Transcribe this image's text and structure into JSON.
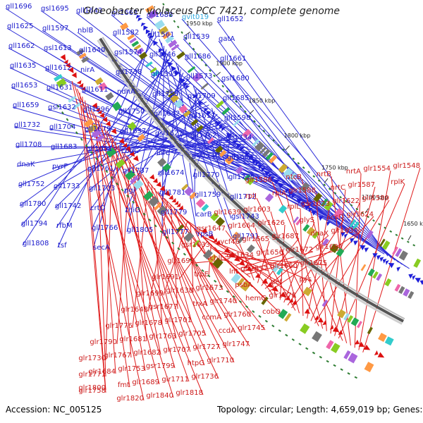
{
  "title": "Gloeobacter violaceus PCC 7421, complete genome",
  "footer": {
    "accession": "Accession: NC_005125",
    "topology": "Topology: circular; Length: 4,659,019 bp; Genes: 4,482"
  },
  "colors": {
    "forward_strand": "#1f1fd9",
    "reverse_strand": "#dd1111",
    "backbone": "#888888",
    "blue_leader": "#2a2ad8",
    "red_leader": "#e01c1c"
  },
  "kbp_ticks": [
    "1650 kbp",
    "1700 kbp",
    "1750 kbp",
    "1800 kbp",
    "1850 kbp",
    "1900 kbp",
    "1950 kbp"
  ],
  "blue_labels": [
    {
      "t": "gll1696"
    },
    {
      "t": "gsl1695"
    },
    {
      "t": "gll1643"
    },
    {
      "t": "gll1663"
    },
    {
      "t": "gll1688"
    },
    {
      "t": "gvit019",
      "cyan": true
    },
    {
      "t": "gll1652"
    },
    {
      "t": "gll1625"
    },
    {
      "t": "gll1597"
    },
    {
      "t": "nblB"
    },
    {
      "t": "gll1582"
    },
    {
      "t": "gll1561"
    },
    {
      "t": "gll1539"
    },
    {
      "t": "gatA"
    },
    {
      "t": "gll1662"
    },
    {
      "t": "gsl1613"
    },
    {
      "t": "gll1640"
    },
    {
      "t": "gsl1574"
    },
    {
      "t": "gll1546"
    },
    {
      "t": "gll1686"
    },
    {
      "t": "gll1661"
    },
    {
      "t": "gll1635"
    },
    {
      "t": "gll1612"
    },
    {
      "t": "nirA"
    },
    {
      "t": "gll1738"
    },
    {
      "t": "gll1595"
    },
    {
      "t": "gll1573"
    },
    {
      "t": "gsl1680"
    },
    {
      "t": "gll1653"
    },
    {
      "t": "gll1631"
    },
    {
      "t": "gll1611"
    },
    {
      "t": "ndhA"
    },
    {
      "t": "gll1735"
    },
    {
      "t": "gsl1709"
    },
    {
      "t": "gll1685"
    },
    {
      "t": "gll1659"
    },
    {
      "t": "gsl1632"
    },
    {
      "t": "gll1596"
    },
    {
      "t": "gll1750"
    },
    {
      "t": "gll1642"
    },
    {
      "t": "gll1617"
    },
    {
      "t": "gll1598"
    },
    {
      "t": "gll1732"
    },
    {
      "t": "gll1704"
    },
    {
      "t": "gll1679"
    },
    {
      "t": "gll1657"
    },
    {
      "t": "gsl1627"
    },
    {
      "t": "gll1762"
    },
    {
      "t": "gll1734"
    },
    {
      "t": "gll1708"
    },
    {
      "t": "gll1683"
    },
    {
      "t": "gll1651"
    },
    {
      "t": "cobC"
    },
    {
      "t": "infC"
    },
    {
      "t": "gsl1716"
    },
    {
      "t": "gll1693"
    },
    {
      "t": "dnaK"
    },
    {
      "t": "pyrF"
    },
    {
      "t": "gll1761"
    },
    {
      "t": "gll1737"
    },
    {
      "t": "gll1674"
    },
    {
      "t": "gll1770"
    },
    {
      "t": "gll1725"
    },
    {
      "t": "gll1752"
    },
    {
      "t": "gll1733"
    },
    {
      "t": "gll1703"
    },
    {
      "t": "pgi"
    },
    {
      "t": "gll1781"
    },
    {
      "t": "gll1759"
    },
    {
      "t": "gll1712"
    },
    {
      "t": "gll1780"
    },
    {
      "t": "gll1742"
    },
    {
      "t": "crtO"
    },
    {
      "t": "thiG"
    },
    {
      "t": "gll1779"
    },
    {
      "t": "carB"
    },
    {
      "t": "gsl1743"
    },
    {
      "t": "gll1794"
    },
    {
      "t": "rfbM"
    },
    {
      "t": "gll1766"
    },
    {
      "t": "gll1805"
    },
    {
      "t": "gll1777"
    },
    {
      "t": "rpsB"
    },
    {
      "t": "gll1791"
    },
    {
      "t": "gll1808"
    },
    {
      "t": "tsf"
    },
    {
      "t": "secA"
    }
  ],
  "red_labels": [
    {
      "t": "glr1548"
    },
    {
      "t": "glr1554"
    },
    {
      "t": "nrtA"
    },
    {
      "t": "nrtB"
    },
    {
      "t": "ntcB"
    },
    {
      "t": "glr1586"
    },
    {
      "t": "rplK"
    },
    {
      "t": "glr1587"
    },
    {
      "t": "nrtC"
    },
    {
      "t": "glr1588"
    },
    {
      "t": "rplA"
    },
    {
      "t": "rplJ"
    },
    {
      "t": "glr1589"
    },
    {
      "t": "glr1622"
    },
    {
      "t": "gsr1623"
    },
    {
      "t": "rplL"
    },
    {
      "t": "glr1603"
    },
    {
      "t": "glr1639"
    },
    {
      "t": "glr1624"
    },
    {
      "t": "accD"
    },
    {
      "t": "glyS"
    },
    {
      "t": "glr1626"
    },
    {
      "t": "glr1664"
    },
    {
      "t": "gsr1647"
    },
    {
      "t": "glr1630"
    },
    {
      "t": "dnaX"
    },
    {
      "t": "glr1687"
    },
    {
      "t": "glr1665"
    },
    {
      "t": "ycf46"
    },
    {
      "t": "gsr1633"
    },
    {
      "t": "glr1694"
    },
    {
      "t": "glr1672"
    },
    {
      "t": "glr1656"
    },
    {
      "t": "glr1634"
    },
    {
      "t": "chlL"
    },
    {
      "t": "glr1698"
    },
    {
      "t": "glr1675"
    },
    {
      "t": "glr1660"
    },
    {
      "t": "glr1637"
    },
    {
      "t": "lnt"
    },
    {
      "t": "trpE"
    },
    {
      "t": "glr1691"
    },
    {
      "t": "pys"
    },
    {
      "t": "def"
    },
    {
      "t": "psbA"
    },
    {
      "t": "glr1673"
    },
    {
      "t": "glr1638"
    },
    {
      "t": "glr1699"
    },
    {
      "t": "glr1778"
    },
    {
      "t": "hemG"
    },
    {
      "t": "glr1740"
    },
    {
      "t": "trxA"
    },
    {
      "t": "gsr1677"
    },
    {
      "t": "glr1648"
    },
    {
      "t": "cobQ"
    },
    {
      "t": "glr1760"
    },
    {
      "t": "ccmA"
    },
    {
      "t": "glr1701"
    },
    {
      "t": "glr1678"
    },
    {
      "t": "glr1776"
    },
    {
      "t": "glr1745"
    },
    {
      "t": "ccdA"
    },
    {
      "t": "glr1705"
    },
    {
      "t": "glr1763"
    },
    {
      "t": "glr1681"
    },
    {
      "t": "glr1790"
    },
    {
      "t": "glr1747"
    },
    {
      "t": "glr1727"
    },
    {
      "t": "glr1707"
    },
    {
      "t": "glr1682"
    },
    {
      "t": "glr1767"
    },
    {
      "t": "glr1730"
    },
    {
      "t": "glr1710"
    },
    {
      "t": "htpG"
    },
    {
      "t": "gsr1799"
    },
    {
      "t": "glr1753"
    },
    {
      "t": "glr1684"
    },
    {
      "t": "glr1771"
    },
    {
      "t": "glr1736"
    },
    {
      "t": "glr1711"
    },
    {
      "t": "glr1689"
    },
    {
      "t": "fmt"
    },
    {
      "t": "glr1800"
    },
    {
      "t": "glr1758"
    },
    {
      "t": "glr1818"
    },
    {
      "t": "glr1840"
    },
    {
      "t": "glr1820"
    }
  ]
}
